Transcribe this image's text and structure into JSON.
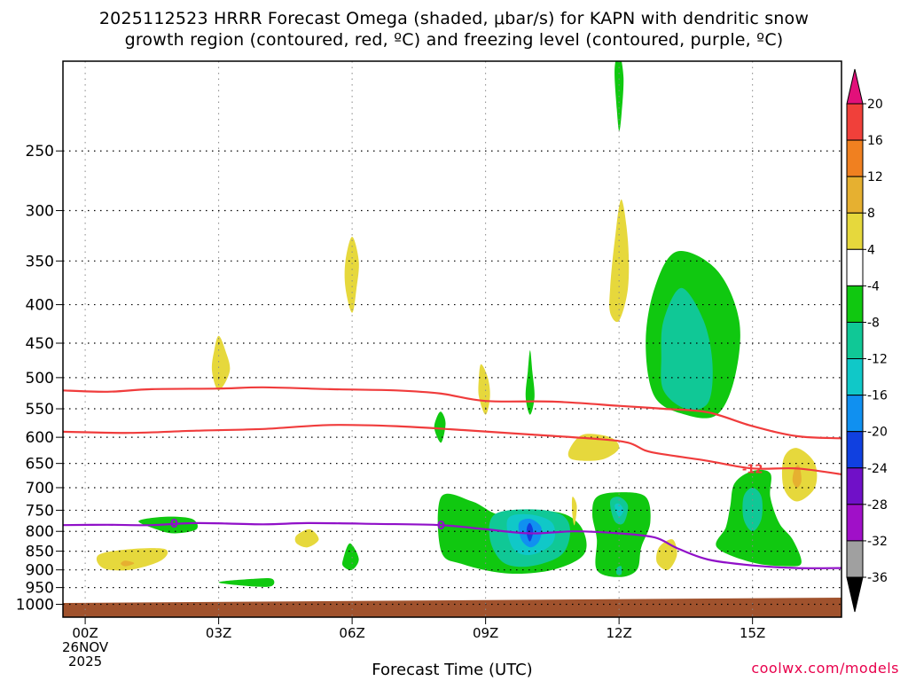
{
  "title_line1": "2025112523 HRRR Forecast Omega (shaded, μbar/s) for KAPN with dendritic snow",
  "title_line2": "growth region (contoured, red, ºC) and freezing level (contoured, purple, ºC)",
  "x_axis_title": "Forecast Time (UTC)",
  "credit": "coolwx.com/models",
  "chart_data": {
    "type": "contour",
    "y_axis": {
      "label": "",
      "scale": "pressure-log-inverted",
      "range": [
        1040,
        190
      ],
      "ticks": [
        250,
        300,
        350,
        400,
        450,
        500,
        550,
        600,
        650,
        700,
        750,
        800,
        850,
        900,
        950,
        1000
      ]
    },
    "x_axis": {
      "range": [
        -0.5,
        17
      ],
      "ticks": [
        {
          "x": 0,
          "label": "00Z",
          "sub1": "26NOV",
          "sub2": "2025"
        },
        {
          "x": 3,
          "label": "03Z"
        },
        {
          "x": 6,
          "label": "06Z"
        },
        {
          "x": 9,
          "label": "09Z"
        },
        {
          "x": 12,
          "label": "12Z"
        },
        {
          "x": 15,
          "label": "15Z"
        }
      ]
    },
    "grid": true,
    "colorbar": {
      "labels": [
        "20",
        "16",
        "12",
        "8",
        "4",
        "-4",
        "-8",
        "-12",
        "-16",
        "-20",
        "-24",
        "-28",
        "-32",
        "-36"
      ],
      "colors": [
        "#e2107a",
        "#f0403a",
        "#f08020",
        "#e6b030",
        "#e6d83c",
        "#ffffff",
        "#10c810",
        "#10c896",
        "#10c8c8",
        "#1090f0",
        "#1040e0",
        "#7010c8",
        "#a010c8",
        "#a0a0a0",
        "#000000"
      ]
    },
    "dgz_contours": [
      {
        "label": "-12",
        "label_at": [
          15.0,
          660
        ],
        "points": [
          [
            -0.5,
            590
          ],
          [
            1,
            592
          ],
          [
            2.5,
            588
          ],
          [
            4,
            585
          ],
          [
            5.5,
            578
          ],
          [
            7,
            580
          ],
          [
            8.5,
            587
          ],
          [
            10,
            595
          ],
          [
            11.5,
            603
          ],
          [
            12.2,
            610
          ],
          [
            12.6,
            625
          ],
          [
            13,
            632
          ],
          [
            14,
            645
          ],
          [
            15,
            660
          ],
          [
            16,
            660
          ],
          [
            17,
            672
          ]
        ]
      },
      {
        "label": "",
        "points": [
          [
            -0.5,
            520
          ],
          [
            0.5,
            522
          ],
          [
            1.5,
            518
          ],
          [
            3,
            517
          ],
          [
            4,
            515
          ],
          [
            5.5,
            518
          ],
          [
            7,
            520
          ],
          [
            8,
            525
          ],
          [
            9,
            537
          ],
          [
            10.5,
            538
          ],
          [
            12,
            545
          ],
          [
            13,
            550
          ],
          [
            14,
            556
          ],
          [
            15,
            580
          ],
          [
            16,
            598
          ],
          [
            17,
            602
          ]
        ]
      }
    ],
    "freezing_level": {
      "label": "0",
      "label_at": [
        [
          2,
          780
        ],
        [
          8,
          785
        ]
      ],
      "points": [
        [
          -0.5,
          785
        ],
        [
          0.5,
          784
        ],
        [
          1.5,
          785
        ],
        [
          2.5,
          780
        ],
        [
          4,
          783
        ],
        [
          5,
          780
        ],
        [
          6.5,
          782
        ],
        [
          8,
          785
        ],
        [
          9,
          795
        ],
        [
          10,
          805
        ],
        [
          11,
          800
        ],
        [
          12,
          805
        ],
        [
          12.8,
          815
        ],
        [
          13.3,
          842
        ],
        [
          14,
          872
        ],
        [
          15,
          888
        ],
        [
          16,
          895
        ],
        [
          17,
          895
        ]
      ]
    },
    "ground": {
      "from_pressure": 985,
      "to_pressure": 1040,
      "color": "#a0522d"
    },
    "omega_regions": [
      {
        "level": 4,
        "color": "#e6d83c",
        "points": [
          [
            0.3,
            860
          ],
          [
            1,
            845
          ],
          [
            1.8,
            845
          ],
          [
            1.7,
            875
          ],
          [
            1,
            900
          ],
          [
            0.4,
            895
          ]
        ]
      },
      {
        "level": 8,
        "color": "#e6b030",
        "points": [
          [
            0.9,
            875
          ],
          [
            1.1,
            882
          ],
          [
            0.9,
            890
          ],
          [
            0.8,
            883
          ]
        ]
      },
      {
        "level": -4,
        "color": "#10c810",
        "points": [
          [
            1.2,
            775
          ],
          [
            1.8,
            765
          ],
          [
            2.4,
            770
          ],
          [
            2.5,
            795
          ],
          [
            2,
            805
          ],
          [
            1.6,
            795
          ]
        ]
      },
      {
        "level": 4,
        "color": "#e6d83c",
        "points": [
          [
            3,
            440
          ],
          [
            3.15,
            460
          ],
          [
            3.25,
            490
          ],
          [
            3,
            520
          ],
          [
            2.85,
            490
          ],
          [
            2.9,
            460
          ]
        ]
      },
      {
        "level": -4,
        "color": "#10c810",
        "points": [
          [
            3,
            935
          ],
          [
            3.8,
            925
          ],
          [
            4.2,
            925
          ],
          [
            4.2,
            945
          ],
          [
            3.8,
            947
          ]
        ]
      },
      {
        "level": 4,
        "color": "#e6d83c",
        "points": [
          [
            4.75,
            810
          ],
          [
            5.05,
            795
          ],
          [
            5.25,
            820
          ],
          [
            5,
            840
          ],
          [
            4.75,
            830
          ]
        ]
      },
      {
        "level": 4,
        "color": "#e6d83c",
        "points": [
          [
            6,
            325
          ],
          [
            6.15,
            350
          ],
          [
            6.1,
            380
          ],
          [
            6,
            410
          ],
          [
            5.85,
            380
          ],
          [
            5.85,
            350
          ]
        ]
      },
      {
        "level": -4,
        "color": "#10c810",
        "points": [
          [
            5.8,
            870
          ],
          [
            5.95,
            830
          ],
          [
            6.15,
            870
          ],
          [
            6,
            900
          ],
          [
            5.8,
            890
          ]
        ]
      },
      {
        "level": -4,
        "color": "#10c810",
        "points": [
          [
            7.9,
            565
          ],
          [
            8,
            555
          ],
          [
            8.1,
            575
          ],
          [
            8,
            610
          ],
          [
            7.85,
            585
          ]
        ]
      },
      {
        "level": 4,
        "color": "#e6d83c",
        "points": [
          [
            8.9,
            480
          ],
          [
            9.05,
            500
          ],
          [
            9.1,
            530
          ],
          [
            9,
            560
          ],
          [
            8.85,
            530
          ],
          [
            8.85,
            500
          ]
        ]
      },
      {
        "level": -4,
        "color": "#10c810",
        "points": [
          [
            10,
            460
          ],
          [
            10.05,
            490
          ],
          [
            10.1,
            530
          ],
          [
            10,
            560
          ],
          [
            9.9,
            530
          ],
          [
            9.95,
            490
          ]
        ]
      },
      {
        "level": -4,
        "color": "#10c810",
        "points": [
          [
            8,
            720
          ],
          [
            8.7,
            730
          ],
          [
            9.3,
            760
          ],
          [
            10,
            750
          ],
          [
            10.8,
            760
          ],
          [
            11.2,
            800
          ],
          [
            11.2,
            860
          ],
          [
            10.5,
            900
          ],
          [
            9.5,
            910
          ],
          [
            8.5,
            885
          ],
          [
            8,
            850
          ]
        ]
      },
      {
        "level": -8,
        "color": "#10c896",
        "points": [
          [
            9.2,
            760
          ],
          [
            10,
            748
          ],
          [
            10.7,
            760
          ],
          [
            10.9,
            800
          ],
          [
            10.7,
            860
          ],
          [
            10,
            890
          ],
          [
            9.4,
            880
          ],
          [
            9.1,
            820
          ]
        ]
      },
      {
        "level": -12,
        "color": "#10c8c8",
        "points": [
          [
            9.5,
            770
          ],
          [
            10,
            760
          ],
          [
            10.5,
            780
          ],
          [
            10.5,
            830
          ],
          [
            10,
            860
          ],
          [
            9.6,
            840
          ]
        ]
      },
      {
        "level": -16,
        "color": "#1090f0",
        "points": [
          [
            9.75,
            780
          ],
          [
            10,
            770
          ],
          [
            10.25,
            790
          ],
          [
            10.2,
            825
          ],
          [
            10,
            840
          ],
          [
            9.8,
            820
          ]
        ]
      },
      {
        "level": -24,
        "color": "#1040e0",
        "points": [
          [
            9.93,
            790
          ],
          [
            10,
            780
          ],
          [
            10.07,
            800
          ],
          [
            10,
            825
          ],
          [
            9.93,
            810
          ]
        ]
      },
      {
        "level": 4,
        "color": "#e6d83c",
        "points": [
          [
            10.9,
            620
          ],
          [
            11.2,
            595
          ],
          [
            11.8,
            600
          ],
          [
            12,
            620
          ],
          [
            11.7,
            640
          ],
          [
            11.3,
            645
          ],
          [
            10.9,
            640
          ]
        ]
      },
      {
        "level": 4,
        "color": "#e6d83c",
        "points": [
          [
            10.95,
            720
          ],
          [
            11.05,
            740
          ],
          [
            11,
            785
          ],
          [
            10.95,
            760
          ]
        ]
      },
      {
        "level": 4,
        "color": "#e6d83c",
        "points": [
          [
            11.8,
            380
          ],
          [
            11.9,
            330
          ],
          [
            12.05,
            290
          ],
          [
            12.2,
            330
          ],
          [
            12.2,
            380
          ],
          [
            12,
            420
          ],
          [
            11.8,
            410
          ]
        ]
      },
      {
        "level": -4,
        "color": "#10c810",
        "points": [
          [
            11.9,
            195
          ],
          [
            12,
            185
          ],
          [
            12.1,
            200
          ],
          [
            12.05,
            225
          ],
          [
            12,
            235
          ],
          [
            11.95,
            220
          ]
        ]
      },
      {
        "level": -4,
        "color": "#10c810",
        "points": [
          [
            11.5,
            720
          ],
          [
            12,
            710
          ],
          [
            12.6,
            720
          ],
          [
            12.7,
            780
          ],
          [
            12.5,
            840
          ],
          [
            12.4,
            900
          ],
          [
            12,
            920
          ],
          [
            11.5,
            900
          ],
          [
            11.5,
            820
          ],
          [
            11.4,
            760
          ]
        ]
      },
      {
        "level": -8,
        "color": "#10c896",
        "points": [
          [
            11.8,
            730
          ],
          [
            12,
            720
          ],
          [
            12.2,
            740
          ],
          [
            12.1,
            780
          ],
          [
            11.9,
            775
          ]
        ]
      },
      {
        "level": -12,
        "color": "#10c8c8",
        "points": [
          [
            11.9,
            740
          ],
          [
            12,
            735
          ],
          [
            12.1,
            750
          ],
          [
            12,
            765
          ]
        ]
      },
      {
        "level": -8,
        "color": "#10c896",
        "points": [
          [
            11.95,
            895
          ],
          [
            12.05,
            890
          ],
          [
            12.05,
            912
          ],
          [
            11.95,
            912
          ]
        ]
      },
      {
        "level": 4,
        "color": "#e6d83c",
        "points": [
          [
            12.9,
            840
          ],
          [
            13.2,
            820
          ],
          [
            13.3,
            860
          ],
          [
            13.1,
            900
          ],
          [
            12.85,
            880
          ]
        ]
      },
      {
        "level": -4,
        "color": "#10c810",
        "points": [
          [
            12.8,
            380
          ],
          [
            13.3,
            340
          ],
          [
            14.2,
            360
          ],
          [
            14.7,
            420
          ],
          [
            14.6,
            500
          ],
          [
            14.2,
            560
          ],
          [
            13.5,
            560
          ],
          [
            12.8,
            530
          ],
          [
            12.6,
            450
          ]
        ]
      },
      {
        "level": -8,
        "color": "#10c896",
        "points": [
          [
            13,
            420
          ],
          [
            13.4,
            380
          ],
          [
            13.9,
            420
          ],
          [
            14.1,
            480
          ],
          [
            14,
            540
          ],
          [
            13.5,
            550
          ],
          [
            13,
            520
          ],
          [
            12.95,
            470
          ]
        ]
      },
      {
        "level": -4,
        "color": "#10c810",
        "points": [
          [
            14.6,
            690
          ],
          [
            15,
            665
          ],
          [
            15.4,
            670
          ],
          [
            15.4,
            720
          ],
          [
            15.6,
            780
          ],
          [
            15.9,
            820
          ],
          [
            16.1,
            880
          ],
          [
            15.8,
            890
          ],
          [
            15,
            880
          ],
          [
            14.2,
            840
          ],
          [
            14.4,
            790
          ],
          [
            14.5,
            740
          ]
        ]
      },
      {
        "level": -8,
        "color": "#10c896",
        "points": [
          [
            14.8,
            720
          ],
          [
            15,
            700
          ],
          [
            15.2,
            720
          ],
          [
            15.2,
            770
          ],
          [
            15,
            800
          ],
          [
            14.8,
            770
          ]
        ]
      },
      {
        "level": 4,
        "color": "#e6d83c",
        "points": [
          [
            15.7,
            640
          ],
          [
            16,
            620
          ],
          [
            16.4,
            650
          ],
          [
            16.4,
            700
          ],
          [
            16,
            730
          ],
          [
            15.7,
            700
          ]
        ]
      },
      {
        "level": 8,
        "color": "#e6b030",
        "points": [
          [
            15.95,
            660
          ],
          [
            16.05,
            655
          ],
          [
            16.1,
            685
          ],
          [
            16,
            700
          ],
          [
            15.9,
            685
          ]
        ]
      }
    ]
  }
}
